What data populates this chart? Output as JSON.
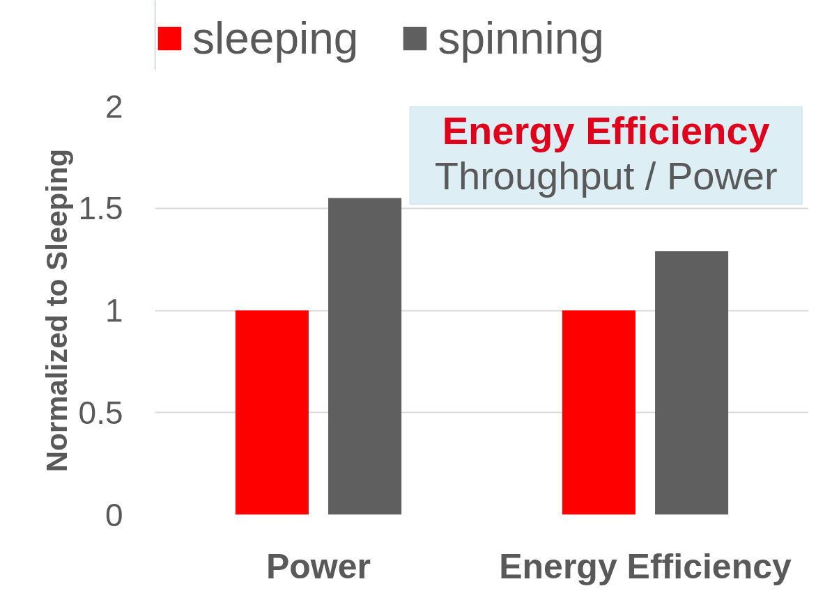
{
  "chart_data": {
    "type": "bar",
    "ylabel": "Normalized to Sleeping",
    "categories": [
      "Power",
      "Energy Efficiency"
    ],
    "series": [
      {
        "name": "sleeping",
        "color": "#ff0000",
        "values": [
          1,
          1
        ]
      },
      {
        "name": "spinning",
        "color": "#5f5f5f",
        "values": [
          1.55,
          1.29
        ]
      }
    ],
    "ylim": [
      0,
      2
    ],
    "yticks": [
      0,
      0.5,
      1,
      1.5,
      2
    ],
    "grid": "y",
    "legend": "top left",
    "annotations": [
      "Energy Efficiency",
      "Throughput / Power"
    ]
  }
}
